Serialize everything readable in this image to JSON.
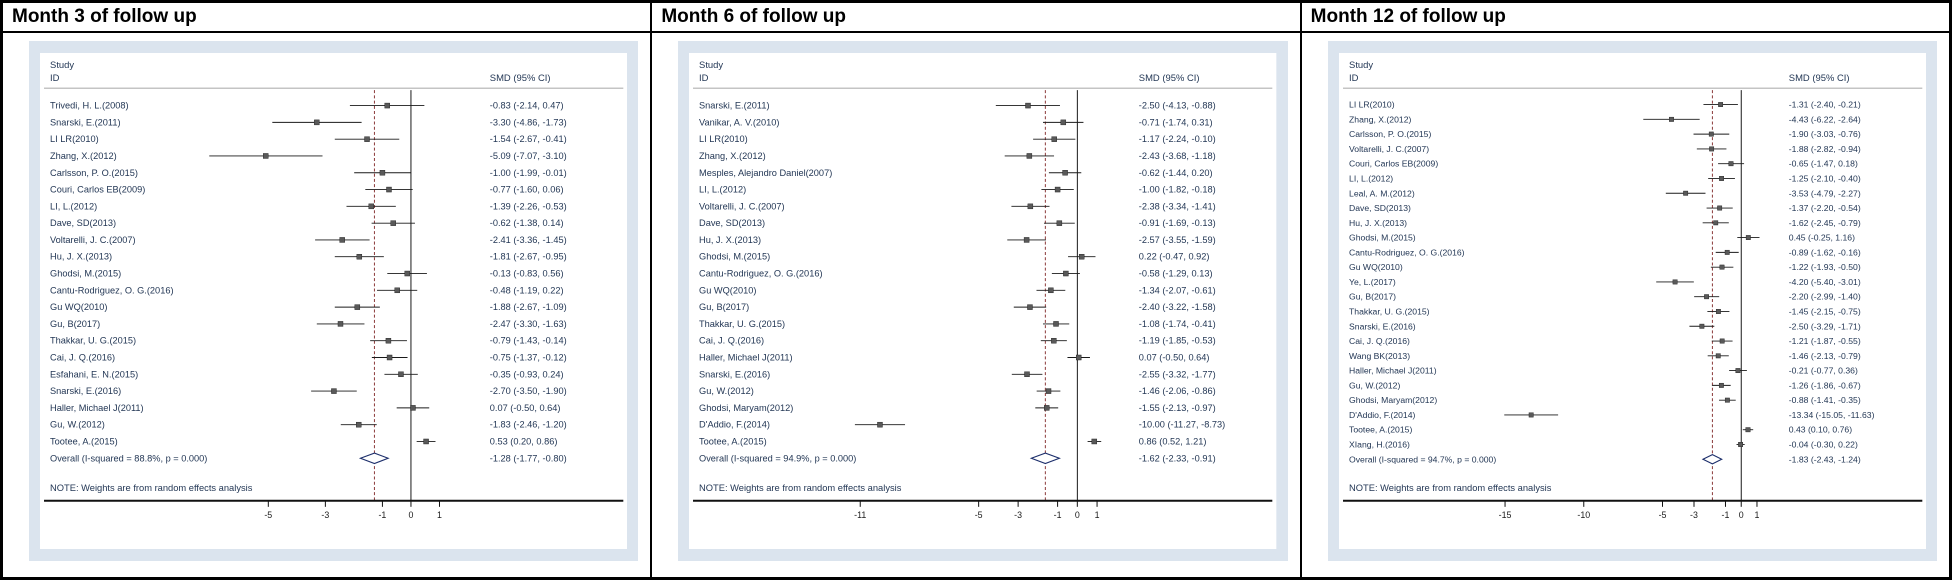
{
  "column_headers": {
    "study": "Study",
    "id": "ID",
    "smd": "SMD (95% CI)"
  },
  "note": "NOTE: Weights are from random effects analysis",
  "colors": {
    "frame_bg": "#dbe4ee",
    "plot_bg": "#ffffff",
    "text": "#233755",
    "null_line": "#000000",
    "overall_dashed_line": "#8b3a3a",
    "ci_line": "#1a1a1a",
    "marker_fill": "#595959",
    "diamond_stroke": "#1c2e6b",
    "rule": "#8a8a8a",
    "axis": "#111111"
  },
  "chart_data": [
    {
      "type": "forest",
      "title": "Month 3 of follow up",
      "i_squared": "88.8%",
      "p_value": "0.000",
      "xticks": [
        -5,
        -3,
        -1,
        0,
        1
      ],
      "xlim": [
        -7.9,
        2.2
      ],
      "studies": [
        {
          "id": "Trivedi, H. L.(2008)",
          "est": -0.83,
          "lo": -2.14,
          "hi": 0.47,
          "ci": "-0.83 (-2.14, 0.47)"
        },
        {
          "id": "Snarski, E.(2011)",
          "est": -3.3,
          "lo": -4.86,
          "hi": -1.73,
          "ci": "-3.30 (-4.86, -1.73)"
        },
        {
          "id": "LI LR(2010)",
          "est": -1.54,
          "lo": -2.67,
          "hi": -0.41,
          "ci": "-1.54 (-2.67, -0.41)"
        },
        {
          "id": "Zhang, X.(2012)",
          "est": -5.09,
          "lo": -7.07,
          "hi": -3.1,
          "ci": "-5.09 (-7.07, -3.10)"
        },
        {
          "id": "Carlsson, P. O.(2015)",
          "est": -1.0,
          "lo": -1.99,
          "hi": -0.01,
          "ci": "-1.00 (-1.99, -0.01)"
        },
        {
          "id": "Couri, Carlos EB(2009)",
          "est": -0.77,
          "lo": -1.6,
          "hi": 0.06,
          "ci": "-0.77 (-1.60, 0.06)"
        },
        {
          "id": "LI, L.(2012)",
          "est": -1.39,
          "lo": -2.26,
          "hi": -0.53,
          "ci": "-1.39 (-2.26, -0.53)"
        },
        {
          "id": "Dave, SD(2013)",
          "est": -0.62,
          "lo": -1.38,
          "hi": 0.14,
          "ci": "-0.62 (-1.38, 0.14)"
        },
        {
          "id": "Voltarelli, J. C.(2007)",
          "est": -2.41,
          "lo": -3.36,
          "hi": -1.45,
          "ci": "-2.41 (-3.36, -1.45)"
        },
        {
          "id": "Hu, J. X.(2013)",
          "est": -1.81,
          "lo": -2.67,
          "hi": -0.95,
          "ci": "-1.81 (-2.67, -0.95)"
        },
        {
          "id": "Ghodsi, M.(2015)",
          "est": -0.13,
          "lo": -0.83,
          "hi": 0.56,
          "ci": "-0.13 (-0.83, 0.56)"
        },
        {
          "id": "Cantu-Rodriguez, O. G.(2016)",
          "est": -0.48,
          "lo": -1.19,
          "hi": 0.22,
          "ci": "-0.48 (-1.19, 0.22)"
        },
        {
          "id": "Gu WQ(2010)",
          "est": -1.88,
          "lo": -2.67,
          "hi": -1.09,
          "ci": "-1.88 (-2.67, -1.09)"
        },
        {
          "id": "Gu, B(2017)",
          "est": -2.47,
          "lo": -3.3,
          "hi": -1.63,
          "ci": "-2.47 (-3.30, -1.63)"
        },
        {
          "id": "Thakkar, U. G.(2015)",
          "est": -0.79,
          "lo": -1.43,
          "hi": -0.14,
          "ci": "-0.79 (-1.43, -0.14)"
        },
        {
          "id": "Cai, J. Q.(2016)",
          "est": -0.75,
          "lo": -1.37,
          "hi": -0.12,
          "ci": "-0.75 (-1.37, -0.12)"
        },
        {
          "id": "Esfahani, E. N.(2015)",
          "est": -0.35,
          "lo": -0.93,
          "hi": 0.24,
          "ci": "-0.35 (-0.93, 0.24)"
        },
        {
          "id": "Snarski, E.(2016)",
          "est": -2.7,
          "lo": -3.5,
          "hi": -1.9,
          "ci": "-2.70 (-3.50, -1.90)"
        },
        {
          "id": "Haller, Michael J(2011)",
          "est": 0.07,
          "lo": -0.5,
          "hi": 0.64,
          "ci": "0.07 (-0.50, 0.64)"
        },
        {
          "id": "Gu, W.(2012)",
          "est": -1.83,
          "lo": -2.46,
          "hi": -1.2,
          "ci": "-1.83 (-2.46, -1.20)"
        },
        {
          "id": "Tootee, A.(2015)",
          "est": 0.53,
          "lo": 0.2,
          "hi": 0.86,
          "ci": "0.53 (0.20, 0.86)"
        }
      ],
      "overall": {
        "label": "Overall  (I-squared = 88.8%, p = 0.000)",
        "est": -1.28,
        "lo": -1.77,
        "hi": -0.8,
        "ci": "-1.28 (-1.77, -0.80)"
      }
    },
    {
      "type": "forest",
      "title": "Month 6 of follow up",
      "i_squared": "94.9%",
      "p_value": "0.000",
      "xticks": [
        -11,
        -5,
        -3,
        -1,
        0,
        1
      ],
      "xlim": [
        -12.3,
        2.3
      ],
      "studies": [
        {
          "id": "Snarski, E.(2011)",
          "est": -2.5,
          "lo": -4.13,
          "hi": -0.88,
          "ci": "-2.50 (-4.13, -0.88)"
        },
        {
          "id": "Vanikar, A. V.(2010)",
          "est": -0.71,
          "lo": -1.74,
          "hi": 0.31,
          "ci": "-0.71 (-1.74, 0.31)"
        },
        {
          "id": "LI LR(2010)",
          "est": -1.17,
          "lo": -2.24,
          "hi": -0.1,
          "ci": "-1.17 (-2.24, -0.10)"
        },
        {
          "id": "Zhang, X.(2012)",
          "est": -2.43,
          "lo": -3.68,
          "hi": -1.18,
          "ci": "-2.43 (-3.68, -1.18)"
        },
        {
          "id": "Mesples, Alejandro Daniel(2007)",
          "est": -0.62,
          "lo": -1.44,
          "hi": 0.2,
          "ci": "-0.62 (-1.44, 0.20)"
        },
        {
          "id": "LI, L.(2012)",
          "est": -1.0,
          "lo": -1.82,
          "hi": -0.18,
          "ci": "-1.00 (-1.82, -0.18)"
        },
        {
          "id": "Voltarelli, J. C.(2007)",
          "est": -2.38,
          "lo": -3.34,
          "hi": -1.41,
          "ci": "-2.38 (-3.34, -1.41)"
        },
        {
          "id": "Dave, SD(2013)",
          "est": -0.91,
          "lo": -1.69,
          "hi": -0.13,
          "ci": "-0.91 (-1.69, -0.13)"
        },
        {
          "id": "Hu, J. X.(2013)",
          "est": -2.57,
          "lo": -3.55,
          "hi": -1.59,
          "ci": "-2.57 (-3.55, -1.59)"
        },
        {
          "id": "Ghodsi, M.(2015)",
          "est": 0.22,
          "lo": -0.47,
          "hi": 0.92,
          "ci": "0.22 (-0.47, 0.92)"
        },
        {
          "id": "Cantu-Rodriguez, O. G.(2016)",
          "est": -0.58,
          "lo": -1.29,
          "hi": 0.13,
          "ci": "-0.58 (-1.29, 0.13)"
        },
        {
          "id": "Gu WQ(2010)",
          "est": -1.34,
          "lo": -2.07,
          "hi": -0.61,
          "ci": "-1.34 (-2.07, -0.61)"
        },
        {
          "id": "Gu, B(2017)",
          "est": -2.4,
          "lo": -3.22,
          "hi": -1.58,
          "ci": "-2.40 (-3.22, -1.58)"
        },
        {
          "id": "Thakkar, U. G.(2015)",
          "est": -1.08,
          "lo": -1.74,
          "hi": -0.41,
          "ci": "-1.08 (-1.74, -0.41)"
        },
        {
          "id": "Cai, J. Q.(2016)",
          "est": -1.19,
          "lo": -1.85,
          "hi": -0.53,
          "ci": "-1.19 (-1.85, -0.53)"
        },
        {
          "id": "Haller, Michael J(2011)",
          "est": 0.07,
          "lo": -0.5,
          "hi": 0.64,
          "ci": "0.07 (-0.50, 0.64)"
        },
        {
          "id": "Snarski, E.(2016)",
          "est": -2.55,
          "lo": -3.32,
          "hi": -1.77,
          "ci": "-2.55 (-3.32, -1.77)"
        },
        {
          "id": "Gu, W.(2012)",
          "est": -1.46,
          "lo": -2.06,
          "hi": -0.86,
          "ci": "-1.46 (-2.06, -0.86)"
        },
        {
          "id": "Ghodsi, Maryam(2012)",
          "est": -1.55,
          "lo": -2.13,
          "hi": -0.97,
          "ci": "-1.55 (-2.13, -0.97)"
        },
        {
          "id": "D'Addio, F.(2014)",
          "est": -10.0,
          "lo": -11.27,
          "hi": -8.73,
          "ci": "-10.00 (-11.27, -8.73)"
        },
        {
          "id": "Tootee, A.(2015)",
          "est": 0.86,
          "lo": 0.52,
          "hi": 1.21,
          "ci": "0.86 (0.52, 1.21)"
        }
      ],
      "overall": {
        "label": "Overall  (I-squared = 94.9%, p = 0.000)",
        "est": -1.62,
        "lo": -2.33,
        "hi": -0.91,
        "ci": "-1.62 (-2.33, -0.91)"
      }
    },
    {
      "type": "forest",
      "title": "Month 12 of follow up",
      "i_squared": "94.7%",
      "p_value": "0.000",
      "xticks": [
        -15,
        -10,
        -5,
        -3,
        -1,
        0,
        1
      ],
      "xlim": [
        -16.3,
        2.0
      ],
      "studies": [
        {
          "id": "LI LR(2010)",
          "est": -1.31,
          "lo": -2.4,
          "hi": -0.21,
          "ci": "-1.31 (-2.40, -0.21)"
        },
        {
          "id": "Zhang, X.(2012)",
          "est": -4.43,
          "lo": -6.22,
          "hi": -2.64,
          "ci": "-4.43 (-6.22, -2.64)"
        },
        {
          "id": "Carlsson, P. O.(2015)",
          "est": -1.9,
          "lo": -3.03,
          "hi": -0.76,
          "ci": "-1.90 (-3.03, -0.76)"
        },
        {
          "id": "Voltarelli, J. C.(2007)",
          "est": -1.88,
          "lo": -2.82,
          "hi": -0.94,
          "ci": "-1.88 (-2.82, -0.94)"
        },
        {
          "id": "Couri, Carlos EB(2009)",
          "est": -0.65,
          "lo": -1.47,
          "hi": 0.18,
          "ci": "-0.65 (-1.47, 0.18)"
        },
        {
          "id": "LI, L.(2012)",
          "est": -1.25,
          "lo": -2.1,
          "hi": -0.4,
          "ci": "-1.25 (-2.10, -0.40)"
        },
        {
          "id": "Leal, A. M.(2012)",
          "est": -3.53,
          "lo": -4.79,
          "hi": -2.27,
          "ci": "-3.53 (-4.79, -2.27)"
        },
        {
          "id": "Dave, SD(2013)",
          "est": -1.37,
          "lo": -2.2,
          "hi": -0.54,
          "ci": "-1.37 (-2.20, -0.54)"
        },
        {
          "id": "Hu, J. X.(2013)",
          "est": -1.62,
          "lo": -2.45,
          "hi": -0.79,
          "ci": "-1.62 (-2.45, -0.79)"
        },
        {
          "id": "Ghodsi, M.(2015)",
          "est": 0.45,
          "lo": -0.25,
          "hi": 1.16,
          "ci": "0.45 (-0.25, 1.16)"
        },
        {
          "id": "Cantu-Rodriguez, O. G.(2016)",
          "est": -0.89,
          "lo": -1.62,
          "hi": -0.16,
          "ci": "-0.89 (-1.62, -0.16)"
        },
        {
          "id": "Gu WQ(2010)",
          "est": -1.22,
          "lo": -1.93,
          "hi": -0.5,
          "ci": "-1.22 (-1.93, -0.50)"
        },
        {
          "id": "Ye, L.(2017)",
          "est": -4.2,
          "lo": -5.4,
          "hi": -3.01,
          "ci": "-4.20 (-5.40, -3.01)"
        },
        {
          "id": "Gu, B(2017)",
          "est": -2.2,
          "lo": -2.99,
          "hi": -1.4,
          "ci": "-2.20 (-2.99, -1.40)"
        },
        {
          "id": "Thakkar, U. G.(2015)",
          "est": -1.45,
          "lo": -2.15,
          "hi": -0.75,
          "ci": "-1.45 (-2.15, -0.75)"
        },
        {
          "id": "Snarski, E.(2016)",
          "est": -2.5,
          "lo": -3.29,
          "hi": -1.71,
          "ci": "-2.50 (-3.29, -1.71)"
        },
        {
          "id": "Cai, J. Q.(2016)",
          "est": -1.21,
          "lo": -1.87,
          "hi": -0.55,
          "ci": "-1.21 (-1.87, -0.55)"
        },
        {
          "id": "Wang BK(2013)",
          "est": -1.46,
          "lo": -2.13,
          "hi": -0.79,
          "ci": "-1.46 (-2.13, -0.79)"
        },
        {
          "id": "Haller, Michael J(2011)",
          "est": -0.21,
          "lo": -0.77,
          "hi": 0.36,
          "ci": "-0.21 (-0.77, 0.36)"
        },
        {
          "id": "Gu, W.(2012)",
          "est": -1.26,
          "lo": -1.86,
          "hi": -0.67,
          "ci": "-1.26 (-1.86, -0.67)"
        },
        {
          "id": "Ghodsi, Maryam(2012)",
          "est": -0.88,
          "lo": -1.41,
          "hi": -0.35,
          "ci": "-0.88 (-1.41, -0.35)"
        },
        {
          "id": "D'Addio, F.(2014)",
          "est": -13.34,
          "lo": -15.05,
          "hi": -11.63,
          "ci": "-13.34 (-15.05, -11.63)"
        },
        {
          "id": "Tootee, A.(2015)",
          "est": 0.43,
          "lo": 0.1,
          "hi": 0.76,
          "ci": "0.43 (0.10, 0.76)"
        },
        {
          "id": "XIang, H.(2016)",
          "est": -0.04,
          "lo": -0.3,
          "hi": 0.22,
          "ci": "-0.04 (-0.30, 0.22)"
        }
      ],
      "overall": {
        "label": "Overall  (I-squared = 94.7%, p = 0.000)",
        "est": -1.83,
        "lo": -2.43,
        "hi": -1.24,
        "ci": "-1.83 (-2.43, -1.24)"
      }
    }
  ]
}
